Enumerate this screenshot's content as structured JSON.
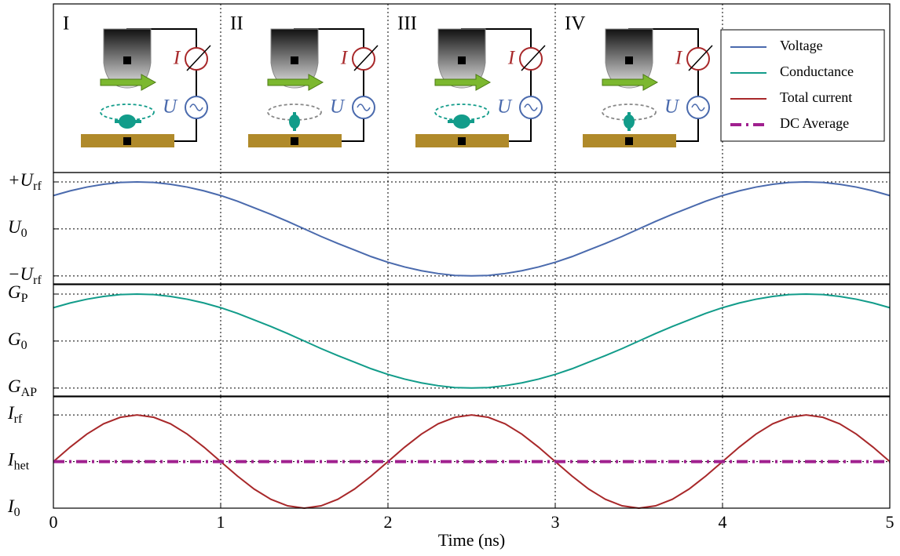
{
  "chart_data": {
    "type": "line",
    "xlabel": "Time (ns)",
    "xlim": [
      0,
      5
    ],
    "xticks": [
      0,
      1,
      2,
      3,
      4,
      5
    ],
    "grid": true,
    "legend": "upper right",
    "x": [
      0,
      0.1,
      0.2,
      0.3,
      0.4,
      0.5,
      0.6,
      0.7,
      0.8,
      0.9,
      1,
      1.1,
      1.2,
      1.3,
      1.4,
      1.5,
      1.6,
      1.7,
      1.8,
      1.9,
      2,
      2.1,
      2.2,
      2.3,
      2.4,
      2.5,
      2.6,
      2.7,
      2.8,
      2.9,
      3,
      3.1,
      3.2,
      3.3,
      3.4,
      3.5,
      3.6,
      3.7,
      3.8,
      3.9,
      4,
      4.1,
      4.2,
      4.3,
      4.4,
      4.5,
      4.6,
      4.7,
      4.8,
      4.9,
      5
    ],
    "panels": [
      {
        "ylim": [
          -1.17,
          1.2
        ],
        "yticks": [
          {
            "value": 1,
            "label": "+U",
            "subscript": "rf"
          },
          {
            "value": 0,
            "label": "U",
            "subscript": "0"
          },
          {
            "value": -1,
            "label": "−U",
            "subscript": "rf"
          }
        ],
        "series": [
          {
            "name": "Voltage",
            "color": "#4a6aad",
            "style": "solid",
            "values": [
              0.71,
              0.81,
              0.89,
              0.95,
              0.99,
              1,
              0.99,
              0.95,
              0.89,
              0.81,
              0.71,
              0.59,
              0.45,
              0.31,
              0.16,
              0,
              -0.16,
              -0.31,
              -0.45,
              -0.59,
              -0.71,
              -0.81,
              -0.89,
              -0.95,
              -0.99,
              -1,
              -0.99,
              -0.95,
              -0.89,
              -0.81,
              -0.71,
              -0.59,
              -0.45,
              -0.31,
              -0.16,
              0,
              0.16,
              0.31,
              0.45,
              0.59,
              0.71,
              0.81,
              0.89,
              0.95,
              0.99,
              1,
              0.99,
              0.95,
              0.89,
              0.81,
              0.71
            ]
          }
        ]
      },
      {
        "ylim": [
          -1.17,
          1.2
        ],
        "yticks": [
          {
            "value": 1,
            "label": "G",
            "subscript": "P"
          },
          {
            "value": 0,
            "label": "G",
            "subscript": "0"
          },
          {
            "value": -1,
            "label": "G",
            "subscript": "AP"
          }
        ],
        "series": [
          {
            "name": "Conductance",
            "color": "#129c8a",
            "style": "solid",
            "values": [
              0.71,
              0.81,
              0.89,
              0.95,
              0.99,
              1,
              0.99,
              0.95,
              0.89,
              0.81,
              0.71,
              0.59,
              0.45,
              0.31,
              0.16,
              0,
              -0.16,
              -0.31,
              -0.45,
              -0.59,
              -0.71,
              -0.81,
              -0.89,
              -0.95,
              -0.99,
              -1,
              -0.99,
              -0.95,
              -0.89,
              -0.81,
              -0.71,
              -0.59,
              -0.45,
              -0.31,
              -0.16,
              0,
              0.16,
              0.31,
              0.45,
              0.59,
              0.71,
              0.81,
              0.89,
              0.95,
              0.99,
              1,
              0.99,
              0.95,
              0.89,
              0.81,
              0.71
            ]
          }
        ]
      },
      {
        "ylim": [
          -1,
          1.39
        ],
        "yticks": [
          {
            "value": 1,
            "label": "I",
            "subscript": "rf"
          },
          {
            "value": 0,
            "label": "I",
            "subscript": "het"
          },
          {
            "value": -1,
            "label": "I",
            "subscript": "0"
          }
        ],
        "series": [
          {
            "name": "Total current",
            "color": "#a8282a",
            "style": "solid",
            "values": [
              0,
              0.31,
              0.59,
              0.81,
              0.95,
              1,
              0.95,
              0.81,
              0.59,
              0.31,
              0,
              -0.31,
              -0.59,
              -0.81,
              -0.95,
              -1,
              -0.95,
              -0.81,
              -0.59,
              -0.31,
              0,
              0.31,
              0.59,
              0.81,
              0.95,
              1,
              0.95,
              0.81,
              0.59,
              0.31,
              0,
              -0.31,
              -0.59,
              -0.81,
              -0.95,
              -1,
              -0.95,
              -0.81,
              -0.59,
              -0.31,
              0,
              0.31,
              0.59,
              0.81,
              0.95,
              1,
              0.95,
              0.81,
              0.59,
              0.31,
              0
            ]
          },
          {
            "name": "DC Average",
            "color": "#a0208f",
            "style": "dashed",
            "values": [
              0,
              0,
              0,
              0,
              0,
              0,
              0,
              0,
              0,
              0,
              0,
              0,
              0,
              0,
              0,
              0,
              0,
              0,
              0,
              0,
              0,
              0,
              0,
              0,
              0,
              0,
              0,
              0,
              0,
              0,
              0,
              0,
              0,
              0,
              0,
              0,
              0,
              0,
              0,
              0,
              0,
              0,
              0,
              0,
              0,
              0,
              0,
              0,
              0,
              0,
              0
            ]
          }
        ]
      }
    ]
  },
  "illustration": {
    "phases": [
      "I",
      "II",
      "III",
      "IV"
    ],
    "current_symbol": "I",
    "voltage_symbol": "U"
  }
}
